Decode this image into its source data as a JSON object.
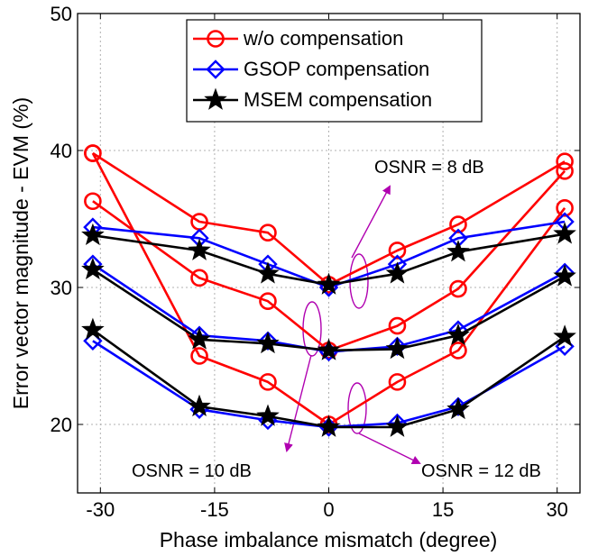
{
  "chart_data": {
    "type": "line",
    "xlabel": "Phase imbalance mismatch (degree)",
    "ylabel": "Error vector magnitude - EVM (%)",
    "xlim": [
      -33,
      33
    ],
    "ylim": [
      15,
      50
    ],
    "xticks": [
      -30,
      -15,
      0,
      15,
      30
    ],
    "yticks": [
      20,
      30,
      40,
      50
    ],
    "grid": true,
    "legend_position": "top-center",
    "legend": [
      {
        "name": "w/o compensation",
        "color": "#ff0000",
        "marker": "circle"
      },
      {
        "name": "GSOP compensation",
        "color": "#0000ff",
        "marker": "diamond"
      },
      {
        "name": "MSEM compensation",
        "color": "#000000",
        "marker": "star"
      }
    ],
    "x": [
      -31,
      -17,
      -8,
      0,
      9,
      17,
      31
    ],
    "series": [
      {
        "group": "w/o compensation",
        "osnr": "8 dB",
        "values": [
          39.8,
          34.8,
          34.0,
          30.2,
          32.7,
          34.6,
          39.2
        ]
      },
      {
        "group": "w/o compensation",
        "osnr": "10 dB",
        "values": [
          36.3,
          30.7,
          29.0,
          25.4,
          27.2,
          29.9,
          38.5
        ]
      },
      {
        "group": "w/o compensation",
        "osnr": "12 dB",
        "values": [
          39.8,
          25.0,
          23.1,
          20.0,
          23.1,
          25.4,
          35.8
        ]
      },
      {
        "group": "GSOP compensation",
        "osnr": "8 dB",
        "values": [
          34.4,
          33.6,
          31.7,
          30.0,
          31.7,
          33.6,
          34.8
        ]
      },
      {
        "group": "GSOP compensation",
        "osnr": "10 dB",
        "values": [
          31.7,
          26.5,
          26.1,
          25.3,
          25.7,
          26.9,
          31.1
        ]
      },
      {
        "group": "GSOP compensation",
        "osnr": "12 dB",
        "values": [
          26.1,
          21.1,
          20.3,
          19.8,
          20.1,
          21.3,
          25.7
        ]
      },
      {
        "group": "MSEM compensation",
        "osnr": "8 dB",
        "values": [
          33.8,
          32.7,
          31.0,
          30.2,
          31.0,
          32.6,
          33.9
        ]
      },
      {
        "group": "MSEM compensation",
        "osnr": "10 dB",
        "values": [
          31.3,
          26.2,
          25.9,
          25.4,
          25.5,
          26.5,
          30.8
        ]
      },
      {
        "group": "MSEM compensation",
        "osnr": "12 dB",
        "values": [
          26.9,
          21.3,
          20.6,
          19.8,
          19.8,
          21.1,
          26.4
        ]
      }
    ],
    "annotations": [
      {
        "text": "OSNR = 8 dB"
      },
      {
        "text": "OSNR = 10 dB"
      },
      {
        "text": "OSNR = 12 dB"
      }
    ],
    "annotation_color": "#b000b0"
  }
}
